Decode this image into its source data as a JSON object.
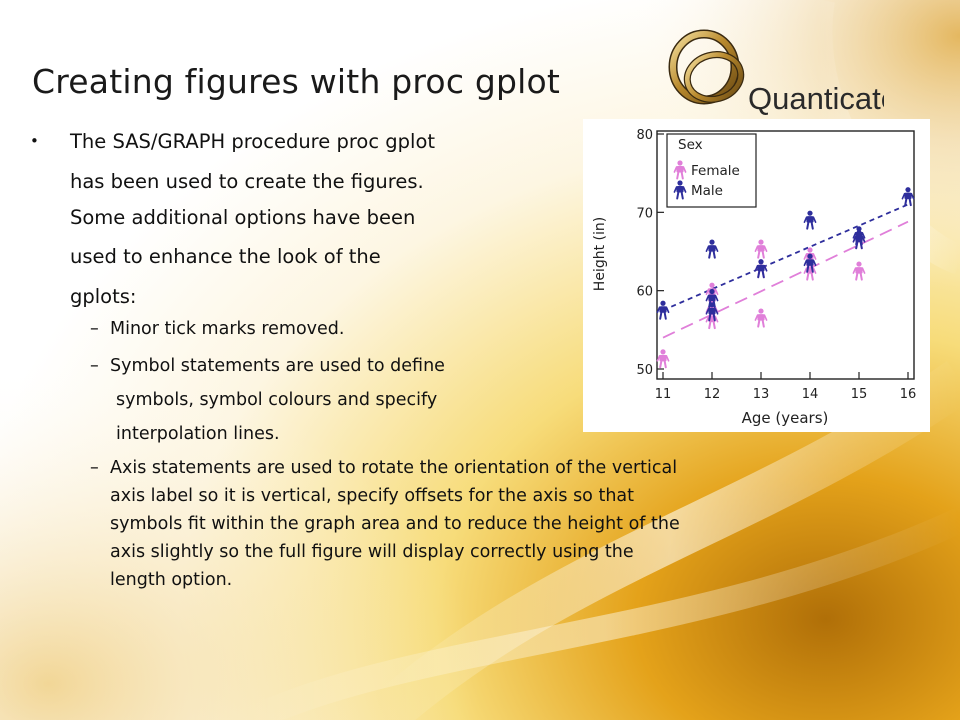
{
  "slide": {
    "title": "Creating figures with proc gplot",
    "logo_text": "Quanticate",
    "bullet": "•",
    "dash": "–",
    "lines": [
      "The SAS/GRAPH procedure proc gplot",
      "has been used to create the figures.",
      "Some additional options have been",
      "used to enhance the look of the",
      "gplots:"
    ],
    "sub_lines": [
      "Minor tick marks removed.",
      "Symbol statements are used to define",
      "symbols, symbol colours and specify",
      "interpolation lines.",
      "Axis statements are used to rotate the orientation of the vertical",
      "axis label so it is vertical, specify offsets for the axis so that",
      "symbols fit within the graph area and to reduce the height of the",
      "axis slightly so the full figure will display correctly using the",
      "length option."
    ]
  },
  "colors": {
    "female": "#e07fd9",
    "male": "#2e2e9c",
    "frame": "#222222",
    "title": "#1a1a1a"
  },
  "chart_data": {
    "type": "scatter",
    "xlabel": "Age (years)",
    "ylabel": "Height (in)",
    "xlim": [
      11,
      16
    ],
    "ylim": [
      50,
      80
    ],
    "x_ticks": [
      "11",
      "12",
      "13",
      "14",
      "15",
      "16"
    ],
    "y_ticks": [
      "50",
      "60",
      "70",
      "80"
    ],
    "grid": false,
    "legend": {
      "title": "Sex",
      "position": "top-left",
      "entries": [
        "Female",
        "Male"
      ]
    },
    "series": [
      {
        "name": "Female",
        "color": "#e07fd9",
        "points": [
          [
            11,
            51.3
          ],
          [
            12,
            56.3
          ],
          [
            12,
            59.8
          ],
          [
            12,
            57.5
          ],
          [
            13,
            65.3
          ],
          [
            13,
            56.5
          ],
          [
            13,
            62.8
          ],
          [
            14,
            62.5
          ],
          [
            14,
            64.3
          ],
          [
            15,
            62.5
          ],
          [
            15,
            66.5
          ]
        ],
        "trend": [
          [
            11,
            54.0
          ],
          [
            16,
            68.8
          ]
        ]
      },
      {
        "name": "Male",
        "color": "#2e2e9c",
        "points": [
          [
            11,
            57.5
          ],
          [
            12,
            65.3
          ],
          [
            12,
            59.0
          ],
          [
            12,
            57.3
          ],
          [
            13,
            62.8
          ],
          [
            14,
            63.5
          ],
          [
            14,
            69.0
          ],
          [
            15,
            67.0
          ],
          [
            15,
            66.5
          ],
          [
            16,
            72.0
          ]
        ],
        "trend": [
          [
            11,
            57.5
          ],
          [
            16,
            71.0
          ]
        ]
      }
    ]
  }
}
